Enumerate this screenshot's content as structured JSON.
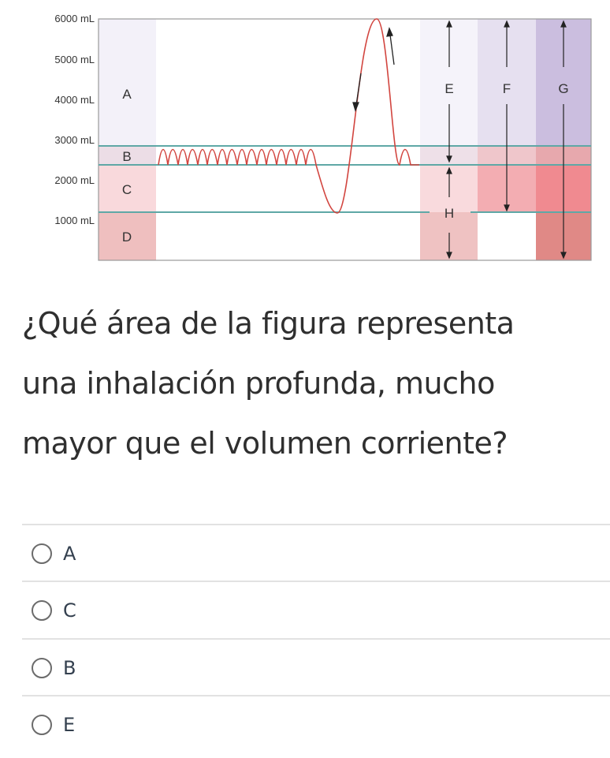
{
  "figure": {
    "y_axis_labels": [
      "6000 mL",
      "5000 mL",
      "4000 mL",
      "3000 mL",
      "2000 mL",
      "1000 mL"
    ],
    "region_labels": [
      "A",
      "B",
      "C",
      "D",
      "E",
      "F",
      "G",
      "H"
    ],
    "colors": {
      "trace": "#d2453f",
      "boundary": "#5fa8a6",
      "axis": "#888888"
    }
  },
  "question": {
    "lines": [
      "¿Qué área de la figura representa",
      "una inhalación profunda, mucho",
      "mayor que el volumen corriente?"
    ]
  },
  "options": [
    {
      "label": "A",
      "selected": false
    },
    {
      "label": "C",
      "selected": false
    },
    {
      "label": "B",
      "selected": false
    },
    {
      "label": "E",
      "selected": false
    }
  ]
}
